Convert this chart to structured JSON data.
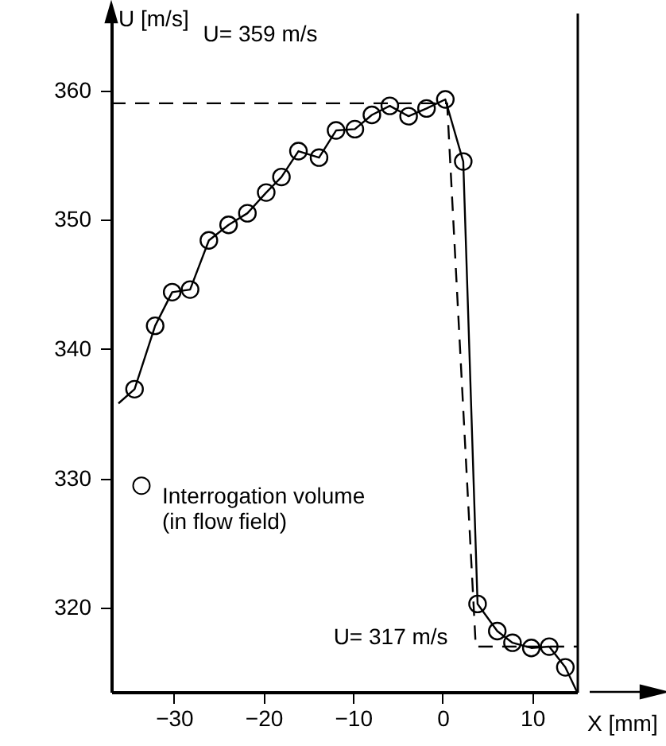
{
  "chart_data": {
    "type": "line",
    "xlabel": "X [mm]",
    "ylabel": "U [m/s]",
    "xlim": [
      -37,
      15
    ],
    "ylim": [
      313.5,
      366
    ],
    "xticks": [
      -30,
      -20,
      -10,
      0,
      10
    ],
    "yticks": [
      320,
      330,
      340,
      350,
      360
    ],
    "grid": false,
    "legend": "left",
    "series": [
      {
        "color": "#000000",
        "marker": "none",
        "line_style": "dashed",
        "x": [
          -37,
          0.5,
          3.7,
          15
        ],
        "values": [
          359,
          359,
          317,
          317
        ]
      },
      {
        "color": "#000000",
        "marker": "none",
        "line_style": "solid",
        "x": [
          -36.2,
          -34.4,
          -32.1,
          -30.2,
          -28.2,
          -26.1,
          -23.9,
          -21.8,
          -19.7,
          -18.0,
          -16.1,
          -13.8,
          -11.9,
          -9.8,
          -7.9,
          -5.9,
          -3.8,
          -1.8,
          0.3,
          2.3,
          3.9,
          6.1,
          7.8,
          9.9,
          11.9,
          13.7,
          15
        ],
        "values": [
          335.8,
          336.9,
          341.8,
          344.4,
          344.6,
          348.4,
          349.6,
          350.5,
          352.1,
          353.3,
          355.3,
          354.8,
          356.9,
          357.0,
          358.1,
          358.8,
          358.0,
          358.6,
          359.3,
          354.5,
          320.3,
          318.2,
          317.3,
          316.9,
          317.0,
          315.4,
          313.5
        ]
      },
      {
        "type": "scatter",
        "name": "Interrogation volume\n(in flow field)",
        "color": "#000000",
        "marker": "circle",
        "x": [
          -34.4,
          -32.1,
          -30.2,
          -28.2,
          -26.1,
          -23.9,
          -21.8,
          -19.7,
          -18.0,
          -16.1,
          -13.8,
          -11.9,
          -9.8,
          -7.9,
          -5.9,
          -3.8,
          -1.8,
          0.3,
          2.3,
          3.9,
          6.1,
          7.8,
          9.9,
          11.9,
          13.7
        ],
        "values": [
          336.9,
          341.8,
          344.4,
          344.6,
          348.4,
          349.6,
          350.5,
          352.1,
          353.3,
          355.3,
          354.8,
          356.9,
          357.0,
          358.1,
          358.8,
          358.0,
          358.6,
          359.3,
          354.5,
          320.3,
          318.2,
          317.3,
          316.9,
          317.0,
          315.4
        ]
      }
    ],
    "annotations": [
      "U= 359 m/s",
      "U= 317 m/s"
    ]
  }
}
